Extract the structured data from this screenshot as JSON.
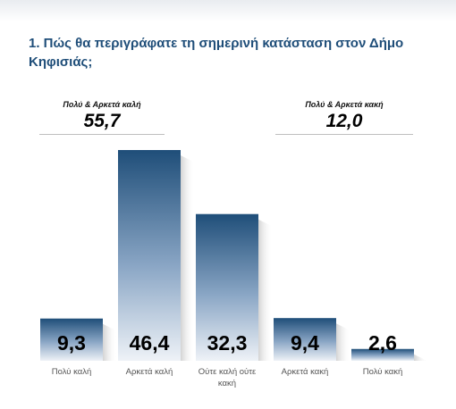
{
  "title": "1. Πώς θα περιγράφατε τη σημερινή κατάσταση στον Δήμο Κηφισιάς;",
  "summaries": [
    {
      "label": "Πολύ & Αρκετά καλή",
      "value": "55,7"
    },
    {
      "label": "Πολύ & Αρκετά κακή",
      "value": "12,0"
    }
  ],
  "chart_data": {
    "type": "bar",
    "title": "1. Πώς θα περιγράφατε τη σημερινή κατάσταση στον Δήμο Κηφισιάς;",
    "categories": [
      "Πολύ καλή",
      "Αρκετά καλή",
      "Ούτε καλή ούτε κακή",
      "Αρκετά κακή",
      "Πολύ κακή"
    ],
    "category_lines": [
      [
        "Πολύ καλή"
      ],
      [
        "Αρκετά καλή"
      ],
      [
        "Ούτε καλή ούτε",
        "κακή"
      ],
      [
        "Αρκετά κακή"
      ],
      [
        "Πολύ κακή"
      ]
    ],
    "values": [
      9.3,
      46.4,
      32.3,
      9.4,
      2.6
    ],
    "value_labels": [
      "9,3",
      "46,4",
      "32,3",
      "9,4",
      "2,6"
    ],
    "xlabel": "",
    "ylabel": "",
    "ylim": [
      0,
      46.4
    ],
    "grid": false,
    "colors": {
      "bar_top": "#1f4e79",
      "bar_bottom": "#eef2f7"
    }
  }
}
